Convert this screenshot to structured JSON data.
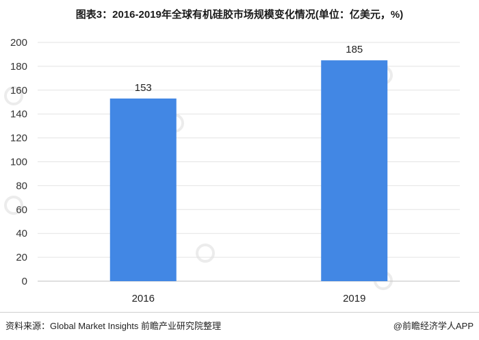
{
  "title": "图表3：2016-2019年全球有机硅胶市场规模变化情况(单位：亿美元，%)",
  "chart_data": {
    "type": "bar",
    "categories": [
      "2016",
      "2019"
    ],
    "values": [
      153,
      185
    ],
    "ylim": [
      0,
      200
    ],
    "yticks": [
      0,
      20,
      40,
      60,
      80,
      100,
      120,
      140,
      160,
      180,
      200
    ],
    "grid": true,
    "bar_color": "#4287e4"
  },
  "footer": {
    "source": "资料来源：Global Market Insights 前瞻产业研究院整理",
    "credit": "@前瞻经济学人APP"
  }
}
